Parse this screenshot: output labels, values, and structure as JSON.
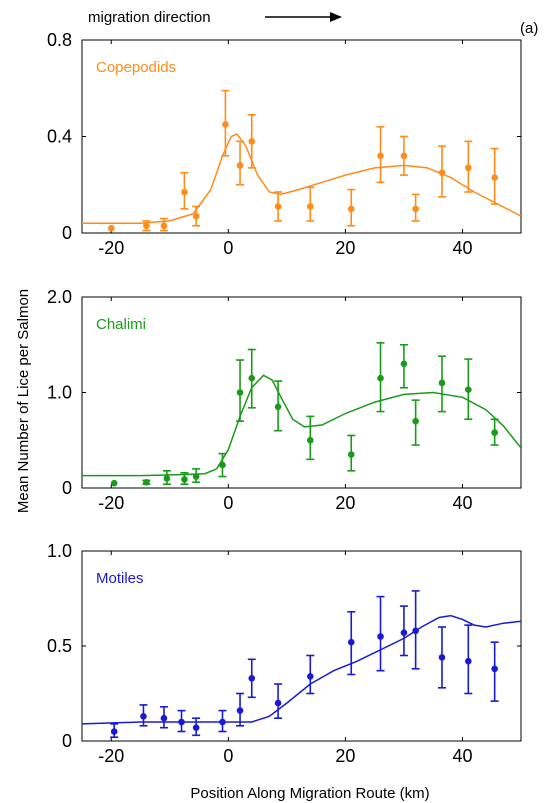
{
  "header": {
    "note": "migration direction",
    "panel_tag": "(a)"
  },
  "ylabel": "Mean Number of Lice per Salmon",
  "xlabel": "Position Along Migration Route (km)",
  "chart_data": [
    {
      "type": "scatter",
      "series_label": "Copepodids",
      "color": "#ff8c1a",
      "xlim": [
        -25,
        50
      ],
      "ylim": [
        0,
        0.8
      ],
      "xticks": [
        -20,
        0,
        20,
        40
      ],
      "yticks": [
        0,
        0.4,
        0.8
      ],
      "ytick_labels": [
        "0",
        "0.4",
        "0.8"
      ],
      "points": [
        {
          "x": -20,
          "y": 0.02,
          "lo": 0.02,
          "hi": 0.02
        },
        {
          "x": -14,
          "y": 0.03,
          "lo": 0.01,
          "hi": 0.05
        },
        {
          "x": -11,
          "y": 0.03,
          "lo": 0.01,
          "hi": 0.06
        },
        {
          "x": -7.5,
          "y": 0.17,
          "lo": 0.1,
          "hi": 0.25
        },
        {
          "x": -5.5,
          "y": 0.07,
          "lo": 0.03,
          "hi": 0.11
        },
        {
          "x": -0.5,
          "y": 0.45,
          "lo": 0.32,
          "hi": 0.59
        },
        {
          "x": 2,
          "y": 0.28,
          "lo": 0.2,
          "hi": 0.38
        },
        {
          "x": 4,
          "y": 0.38,
          "lo": 0.27,
          "hi": 0.49
        },
        {
          "x": 8.5,
          "y": 0.11,
          "lo": 0.05,
          "hi": 0.17
        },
        {
          "x": 14,
          "y": 0.11,
          "lo": 0.05,
          "hi": 0.19
        },
        {
          "x": 21,
          "y": 0.1,
          "lo": 0.03,
          "hi": 0.18
        },
        {
          "x": 26,
          "y": 0.32,
          "lo": 0.21,
          "hi": 0.44
        },
        {
          "x": 30,
          "y": 0.32,
          "lo": 0.24,
          "hi": 0.4
        },
        {
          "x": 32,
          "y": 0.1,
          "lo": 0.05,
          "hi": 0.16
        },
        {
          "x": 36.5,
          "y": 0.25,
          "lo": 0.15,
          "hi": 0.36
        },
        {
          "x": 41,
          "y": 0.27,
          "lo": 0.17,
          "hi": 0.38
        },
        {
          "x": 45.5,
          "y": 0.23,
          "lo": 0.12,
          "hi": 0.35
        }
      ],
      "curve": [
        [
          -25,
          0.04
        ],
        [
          -15,
          0.04
        ],
        [
          -10,
          0.05
        ],
        [
          -6,
          0.08
        ],
        [
          -3,
          0.18
        ],
        [
          -1,
          0.32
        ],
        [
          0.5,
          0.4
        ],
        [
          1.5,
          0.41
        ],
        [
          3,
          0.36
        ],
        [
          5,
          0.24
        ],
        [
          7,
          0.17
        ],
        [
          9,
          0.16
        ],
        [
          12,
          0.18
        ],
        [
          16,
          0.21
        ],
        [
          20,
          0.24
        ],
        [
          25,
          0.27
        ],
        [
          30,
          0.28
        ],
        [
          34,
          0.27
        ],
        [
          38,
          0.23
        ],
        [
          42,
          0.17
        ],
        [
          46,
          0.12
        ],
        [
          50,
          0.07
        ]
      ]
    },
    {
      "type": "scatter",
      "series_label": "Chalimi",
      "color": "#1a9a1a",
      "xlim": [
        -25,
        50
      ],
      "ylim": [
        0,
        2.0
      ],
      "xticks": [
        -20,
        0,
        20,
        40
      ],
      "yticks": [
        0,
        1,
        2
      ],
      "ytick_labels": [
        "0",
        "1.0",
        "2.0"
      ],
      "points": [
        {
          "x": -19.5,
          "y": 0.05,
          "lo": 0.05,
          "hi": 0.05
        },
        {
          "x": -14,
          "y": 0.06,
          "lo": 0.04,
          "hi": 0.08
        },
        {
          "x": -10.5,
          "y": 0.1,
          "lo": 0.04,
          "hi": 0.18
        },
        {
          "x": -7.5,
          "y": 0.09,
          "lo": 0.04,
          "hi": 0.16
        },
        {
          "x": -5.5,
          "y": 0.12,
          "lo": 0.06,
          "hi": 0.2
        },
        {
          "x": -1,
          "y": 0.24,
          "lo": 0.12,
          "hi": 0.36
        },
        {
          "x": 2,
          "y": 1.0,
          "lo": 0.7,
          "hi": 1.34
        },
        {
          "x": 4,
          "y": 1.15,
          "lo": 0.84,
          "hi": 1.45
        },
        {
          "x": 8.5,
          "y": 0.85,
          "lo": 0.6,
          "hi": 1.12
        },
        {
          "x": 14,
          "y": 0.5,
          "lo": 0.3,
          "hi": 0.75
        },
        {
          "x": 21,
          "y": 0.35,
          "lo": 0.18,
          "hi": 0.55
        },
        {
          "x": 26,
          "y": 1.15,
          "lo": 0.8,
          "hi": 1.52
        },
        {
          "x": 30,
          "y": 1.3,
          "lo": 1.05,
          "hi": 1.5
        },
        {
          "x": 32,
          "y": 0.7,
          "lo": 0.45,
          "hi": 0.92
        },
        {
          "x": 36.5,
          "y": 1.1,
          "lo": 0.8,
          "hi": 1.38
        },
        {
          "x": 41,
          "y": 1.03,
          "lo": 0.72,
          "hi": 1.35
        },
        {
          "x": 45.5,
          "y": 0.58,
          "lo": 0.45,
          "hi": 0.72
        }
      ],
      "curve": [
        [
          -25,
          0.13
        ],
        [
          -15,
          0.13
        ],
        [
          -8,
          0.14
        ],
        [
          -4,
          0.15
        ],
        [
          -2,
          0.2
        ],
        [
          0,
          0.4
        ],
        [
          2,
          0.75
        ],
        [
          4,
          1.05
        ],
        [
          6,
          1.18
        ],
        [
          7.5,
          1.13
        ],
        [
          9,
          0.95
        ],
        [
          11,
          0.72
        ],
        [
          13,
          0.64
        ],
        [
          16,
          0.66
        ],
        [
          20,
          0.78
        ],
        [
          25,
          0.9
        ],
        [
          30,
          0.98
        ],
        [
          35,
          1.0
        ],
        [
          40,
          0.95
        ],
        [
          44,
          0.82
        ],
        [
          47,
          0.65
        ],
        [
          50,
          0.42
        ]
      ]
    },
    {
      "type": "scatter",
      "series_label": "Motiles",
      "color": "#1a1ad6",
      "xlim": [
        -25,
        50
      ],
      "ylim": [
        0,
        1.0
      ],
      "xticks": [
        -20,
        0,
        20,
        40
      ],
      "yticks": [
        0,
        0.5,
        1.0
      ],
      "ytick_labels": [
        "0",
        "0.5",
        "1.0"
      ],
      "points": [
        {
          "x": -19.5,
          "y": 0.05,
          "lo": 0.02,
          "hi": 0.09
        },
        {
          "x": -14.5,
          "y": 0.13,
          "lo": 0.08,
          "hi": 0.19
        },
        {
          "x": -11,
          "y": 0.12,
          "lo": 0.07,
          "hi": 0.18
        },
        {
          "x": -8,
          "y": 0.1,
          "lo": 0.05,
          "hi": 0.16
        },
        {
          "x": -5.5,
          "y": 0.07,
          "lo": 0.03,
          "hi": 0.12
        },
        {
          "x": -1,
          "y": 0.1,
          "lo": 0.05,
          "hi": 0.16
        },
        {
          "x": 2,
          "y": 0.16,
          "lo": 0.08,
          "hi": 0.25
        },
        {
          "x": 4,
          "y": 0.33,
          "lo": 0.23,
          "hi": 0.43
        },
        {
          "x": 8.5,
          "y": 0.2,
          "lo": 0.12,
          "hi": 0.3
        },
        {
          "x": 14,
          "y": 0.34,
          "lo": 0.25,
          "hi": 0.45
        },
        {
          "x": 21,
          "y": 0.52,
          "lo": 0.35,
          "hi": 0.68
        },
        {
          "x": 26,
          "y": 0.55,
          "lo": 0.37,
          "hi": 0.76
        },
        {
          "x": 30,
          "y": 0.57,
          "lo": 0.45,
          "hi": 0.71
        },
        {
          "x": 32,
          "y": 0.58,
          "lo": 0.38,
          "hi": 0.79
        },
        {
          "x": 36.5,
          "y": 0.44,
          "lo": 0.28,
          "hi": 0.6
        },
        {
          "x": 41,
          "y": 0.42,
          "lo": 0.25,
          "hi": 0.61
        },
        {
          "x": 45.5,
          "y": 0.38,
          "lo": 0.21,
          "hi": 0.52
        }
      ],
      "curve": [
        [
          -25,
          0.09
        ],
        [
          -15,
          0.1
        ],
        [
          -8,
          0.1
        ],
        [
          0,
          0.1
        ],
        [
          4,
          0.1
        ],
        [
          7,
          0.13
        ],
        [
          10,
          0.2
        ],
        [
          14,
          0.3
        ],
        [
          18,
          0.37
        ],
        [
          22,
          0.42
        ],
        [
          26,
          0.48
        ],
        [
          30,
          0.54
        ],
        [
          33,
          0.6
        ],
        [
          36,
          0.65
        ],
        [
          38,
          0.66
        ],
        [
          40,
          0.64
        ],
        [
          42,
          0.61
        ],
        [
          44,
          0.6
        ],
        [
          47,
          0.62
        ],
        [
          50,
          0.63
        ]
      ]
    }
  ]
}
